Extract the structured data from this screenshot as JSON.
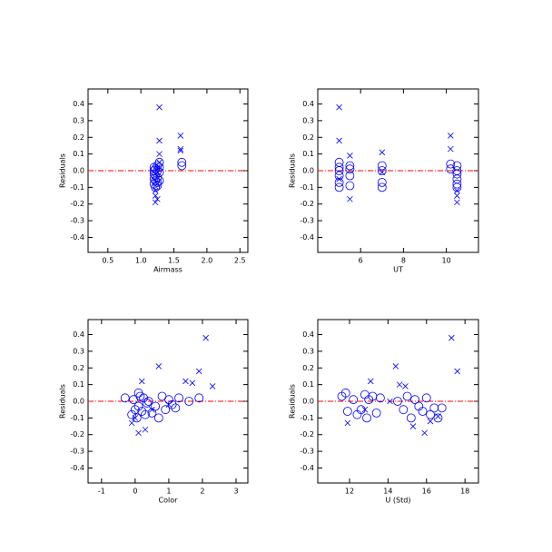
{
  "chart_data": [
    {
      "type": "scatter",
      "ylabel": "Residuals",
      "xlabel": "Airmass",
      "xlim": [
        0.2,
        2.62
      ],
      "xticks": [
        0.5,
        {
          "value": 1,
          "label": "1.0"
        },
        1.5,
        {
          "value": 2,
          "label": "2.0"
        },
        2.5
      ],
      "ylim": [
        -0.49,
        0.49
      ],
      "yticks": [
        -0.4,
        -0.3,
        -0.2,
        -0.1,
        {
          "value": 0,
          "label": "0.0"
        },
        0.1,
        0.2,
        0.3,
        0.4
      ],
      "reference_line": {
        "value": 0,
        "color": "#ff0000"
      },
      "series": [
        {
          "marker": "circle",
          "color": "#0000ff",
          "x": [
            1.2,
            1.2,
            1.2,
            1.2,
            1.2,
            1.22,
            1.22,
            1.22,
            1.22,
            1.25,
            1.25,
            1.25,
            1.25,
            1.25,
            1.28,
            1.28,
            1.28,
            1.28,
            1.62,
            1.62
          ],
          "y": [
            0.02,
            0,
            -0.02,
            -0.05,
            -0.08,
            0.01,
            -0.03,
            -0.06,
            -0.1,
            0.03,
            0,
            -0.04,
            -0.07,
            -0.09,
            0.05,
            0.02,
            -0.01,
            -0.06,
            0.05,
            0.03
          ]
        },
        {
          "marker": "cross",
          "color": "#0000ff",
          "x": [
            1.22,
            1.22,
            1.22,
            1.25,
            1.25,
            1.25,
            1.28,
            1.28,
            1.28,
            1.28,
            1.6,
            1.6,
            1.6
          ],
          "y": [
            -0.19,
            -0.15,
            -0.12,
            -0.17,
            -0.08,
            0.02,
            0.38,
            0.18,
            0.1,
            0.05,
            0.21,
            0.13,
            0.12
          ]
        }
      ]
    },
    {
      "type": "scatter",
      "ylabel": "Residuals",
      "xlabel": "UT",
      "xlim": [
        4,
        11.5
      ],
      "xticks": [
        6,
        8,
        10
      ],
      "ylim": [
        -0.49,
        0.49
      ],
      "yticks": [
        -0.4,
        -0.3,
        -0.2,
        -0.1,
        {
          "value": 0,
          "label": "0.0"
        },
        0.1,
        0.2,
        0.3,
        0.4
      ],
      "reference_line": {
        "value": 0,
        "color": "#ff0000"
      },
      "series": [
        {
          "marker": "circle",
          "color": "#0000ff",
          "x": [
            5,
            5,
            5,
            5,
            5,
            5,
            5.5,
            5.5,
            5.5,
            5.5,
            7,
            7,
            7,
            7,
            10.2,
            10.2,
            10.5,
            10.5,
            10.5,
            10.5,
            10.5,
            10.5
          ],
          "y": [
            0.05,
            0.02,
            0,
            -0.03,
            -0.07,
            -0.1,
            0.03,
            0.01,
            -0.03,
            -0.09,
            0.03,
            0,
            -0.07,
            -0.1,
            0.04,
            0.01,
            0.03,
            0,
            -0.02,
            -0.05,
            -0.08,
            -0.1
          ]
        },
        {
          "marker": "cross",
          "color": "#0000ff",
          "x": [
            5,
            5,
            5,
            5.5,
            5.5,
            7,
            7,
            10.2,
            10.2,
            10.5,
            10.5,
            10.5
          ],
          "y": [
            0.38,
            0.18,
            -0.05,
            0.09,
            -0.17,
            0.11,
            -0.01,
            0.21,
            0.13,
            -0.12,
            -0.15,
            -0.19
          ]
        }
      ]
    },
    {
      "type": "scatter",
      "ylabel": "Residuals",
      "xlabel": "Color",
      "xlim": [
        -1.4,
        3.35
      ],
      "xticks": [
        -1,
        0,
        1,
        2,
        3
      ],
      "ylim": [
        -0.49,
        0.49
      ],
      "yticks": [
        -0.4,
        -0.3,
        -0.2,
        -0.1,
        {
          "value": 0,
          "label": "0.0"
        },
        0.1,
        0.2,
        0.3,
        0.4
      ],
      "reference_line": {
        "value": 0,
        "color": "#ff0000"
      },
      "series": [
        {
          "marker": "circle",
          "color": "#0000ff",
          "x": [
            -0.3,
            -0.1,
            -0.05,
            0,
            0.05,
            0.1,
            0.1,
            0.15,
            0.2,
            0.25,
            0.3,
            0.35,
            0.4,
            0.5,
            0.6,
            0.7,
            0.8,
            0.9,
            1,
            1.1,
            1.2,
            1.3,
            1.6,
            1.9
          ],
          "y": [
            0.02,
            -0.08,
            0.01,
            -0.05,
            -0.1,
            0.05,
            -0.03,
            0.03,
            -0.06,
            0.02,
            -0.08,
            -0.01,
            0,
            -0.07,
            -0.03,
            -0.1,
            0.03,
            -0.05,
            0.01,
            -0.02,
            -0.04,
            0.02,
            0,
            0.02
          ]
        },
        {
          "marker": "cross",
          "color": "#0000ff",
          "x": [
            -0.1,
            0,
            0.1,
            0.2,
            0.3,
            0.5,
            0.7,
            1,
            1.5,
            1.7,
            1.9,
            2.1,
            2.3
          ],
          "y": [
            -0.13,
            -0.1,
            -0.19,
            0.12,
            -0.17,
            -0.05,
            0.21,
            -0.02,
            0.12,
            0.11,
            0.18,
            0.38,
            0.09
          ]
        }
      ]
    },
    {
      "type": "scatter",
      "ylabel": "Residuals",
      "xlabel": "U (Std)",
      "xlim": [
        10.35,
        18.7
      ],
      "xticks": [
        12,
        14,
        16,
        18
      ],
      "ylim": [
        -0.49,
        0.49
      ],
      "yticks": [
        -0.4,
        -0.3,
        -0.2,
        -0.1,
        {
          "value": 0,
          "label": "0.0"
        },
        0.1,
        0.2,
        0.3,
        0.4
      ],
      "reference_line": {
        "value": 0,
        "color": "#ff0000"
      },
      "series": [
        {
          "marker": "circle",
          "color": "#0000ff",
          "x": [
            11.6,
            11.8,
            11.9,
            12.2,
            12.4,
            12.6,
            12.8,
            12.9,
            13,
            13.2,
            13.4,
            13.6,
            14.5,
            14.8,
            15,
            15.2,
            15.4,
            15.6,
            15.8,
            16,
            16.2,
            16.4,
            16.6,
            16.8
          ],
          "y": [
            0.03,
            0.05,
            -0.06,
            0.01,
            -0.08,
            -0.05,
            0.04,
            -0.1,
            0.01,
            0.03,
            -0.07,
            0.02,
            0,
            -0.05,
            0.03,
            -0.1,
            0.01,
            -0.03,
            -0.06,
            0.02,
            -0.08,
            -0.04,
            -0.1,
            -0.04
          ]
        },
        {
          "marker": "cross",
          "color": "#0000ff",
          "x": [
            11.9,
            12.8,
            13.1,
            14.1,
            14.4,
            14.6,
            14.9,
            15.3,
            15.9,
            16.2,
            16.6,
            17.3,
            17.6
          ],
          "y": [
            -0.13,
            -0.05,
            0.12,
            0,
            0.21,
            0.1,
            0.09,
            -0.15,
            -0.19,
            -0.12,
            -0.09,
            0.38,
            0.18
          ]
        }
      ]
    }
  ]
}
